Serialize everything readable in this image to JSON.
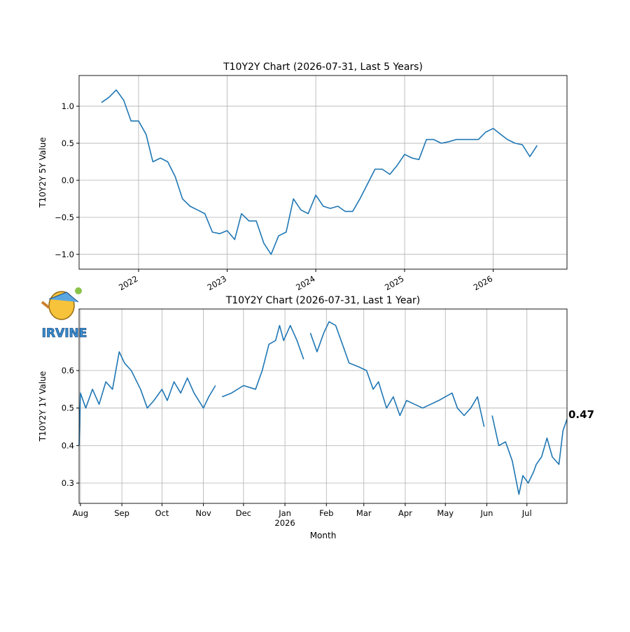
{
  "chart_data": [
    {
      "type": "line",
      "title": "T10Y2Y Chart (2026-07-31, Last 5 Years)",
      "y_label": "T10Y2Y 5Y Value",
      "color": "#1f77b4",
      "grid": true,
      "xlim": [
        "2021-05",
        "2026-11"
      ],
      "ylim": [
        -1.2,
        1.415
      ],
      "xticks": [
        {
          "value": "2022-01",
          "label": "2022"
        },
        {
          "value": "2023-01",
          "label": "2023"
        },
        {
          "value": "2024-01",
          "label": "2024"
        },
        {
          "value": "2025-01",
          "label": "2025"
        },
        {
          "value": "2026-01",
          "label": "2026"
        }
      ],
      "yticks": [
        {
          "value": -1,
          "label": "−1.0"
        },
        {
          "value": -0.5,
          "label": "−0.5"
        },
        {
          "value": 0,
          "label": "0.0"
        },
        {
          "value": 0.5,
          "label": "0.5"
        },
        {
          "value": 1,
          "label": "1.0"
        }
      ],
      "x": [
        "2021-08",
        "2021-09",
        "2021-10",
        "2021-11",
        "2021-12",
        "2022-01",
        "2022-02",
        "2022-03",
        "2022-04",
        "2022-05",
        "2022-06",
        "2022-07",
        "2022-08",
        "2022-09",
        "2022-10",
        "2022-11",
        "2022-12",
        "2023-01",
        "2023-02",
        "2023-03",
        "2023-04",
        "2023-05",
        "2023-06",
        "2023-07",
        "2023-08",
        "2023-09",
        "2023-10",
        "2023-11",
        "2023-12",
        "2024-01",
        "2024-02",
        "2024-03",
        "2024-04",
        "2024-05",
        "2024-06",
        "2024-07",
        "2024-08",
        "2024-09",
        "2024-10",
        "2024-11",
        "2024-12",
        "2025-01",
        "2025-02",
        "2025-03",
        "2025-04",
        "2025-05",
        "2025-06",
        "2025-07",
        "2025-08",
        "2025-09",
        "2025-10",
        "2025-11",
        "2025-12",
        "2026-01",
        "2026-02",
        "2026-03",
        "2026-04",
        "2026-05",
        "2026-06",
        "2026-07"
      ],
      "values": [
        1.05,
        1.12,
        1.22,
        1.08,
        0.8,
        0.8,
        0.62,
        0.25,
        0.3,
        0.25,
        0.05,
        -0.25,
        -0.35,
        -0.4,
        -0.45,
        -0.7,
        -0.72,
        -0.68,
        -0.8,
        -0.45,
        -0.55,
        -0.55,
        -0.85,
        -1.0,
        -0.75,
        -0.7,
        -0.25,
        -0.4,
        -0.45,
        -0.2,
        -0.35,
        -0.38,
        -0.35,
        -0.42,
        -0.42,
        -0.25,
        -0.05,
        0.15,
        0.15,
        0.08,
        0.2,
        0.35,
        0.3,
        0.28,
        0.55,
        0.55,
        0.5,
        0.52,
        0.55,
        0.55,
        0.55,
        0.55,
        0.65,
        0.7,
        0.62,
        0.55,
        0.5,
        0.48,
        0.32,
        0.47
      ]
    },
    {
      "type": "line",
      "title": "T10Y2Y Chart (2026-07-31, Last 1 Year)",
      "y_label": "T10Y2Y 1Y Value",
      "x_label": "Month",
      "x_year_label": "2026",
      "color": "#1f77b4",
      "grid": true,
      "logo_text": "IRVINE",
      "xlim": [
        "2025-07-31",
        "2026-07-31"
      ],
      "ylim": [
        0.246,
        0.764
      ],
      "xticks": [
        {
          "value": "2025-08-01",
          "label": "Aug"
        },
        {
          "value": "2025-09-01",
          "label": "Sep"
        },
        {
          "value": "2025-10-01",
          "label": "Oct"
        },
        {
          "value": "2025-11-01",
          "label": "Nov"
        },
        {
          "value": "2025-12-01",
          "label": "Dec"
        },
        {
          "value": "2026-01-01",
          "label": "Jan"
        },
        {
          "value": "2026-02-01",
          "label": "Feb"
        },
        {
          "value": "2026-03-01",
          "label": "Mar"
        },
        {
          "value": "2026-04-01",
          "label": "Apr"
        },
        {
          "value": "2026-05-01",
          "label": "May"
        },
        {
          "value": "2026-06-01",
          "label": "Jun"
        },
        {
          "value": "2026-07-01",
          "label": "Jul"
        }
      ],
      "yticks": [
        0.3,
        0.4,
        0.5,
        0.6
      ],
      "x": [
        "2025-07-31",
        "2025-08-01",
        "2025-08-05",
        "2025-08-10",
        "2025-08-15",
        "2025-08-20",
        "2025-08-25",
        "2025-08-30",
        "2025-09-03",
        "2025-09-08",
        "2025-09-15",
        "2025-09-20",
        "2025-09-25",
        "2025-10-01",
        "2025-10-05",
        "2025-10-10",
        "2025-10-15",
        "2025-10-20",
        "2025-10-25",
        "2025-11-01",
        "2025-11-05",
        "2025-11-10",
        "2025-11-12",
        "2025-11-15",
        "2025-11-22",
        "2025-12-01",
        "2025-12-10",
        "2025-12-15",
        "2025-12-20",
        "2025-12-25",
        "2025-12-28",
        "2025-12-31",
        "2026-01-05",
        "2026-01-10",
        "2026-01-15",
        "2026-01-17",
        "2026-01-20",
        "2026-01-25",
        "2026-01-30",
        "2026-02-03",
        "2026-02-08",
        "2026-02-14",
        "2026-02-18",
        "2026-02-25",
        "2026-03-03",
        "2026-03-08",
        "2026-03-12",
        "2026-03-18",
        "2026-03-23",
        "2026-03-28",
        "2026-04-02",
        "2026-04-08",
        "2026-04-14",
        "2026-04-20",
        "2026-04-26",
        "2026-05-01",
        "2026-05-06",
        "2026-05-10",
        "2026-05-15",
        "2026-05-20",
        "2026-05-25",
        "2026-05-30",
        "2026-06-02",
        "2026-06-05",
        "2026-06-10",
        "2026-06-15",
        "2026-06-20",
        "2026-06-25",
        "2026-06-28",
        "2026-07-02",
        "2026-07-06",
        "2026-07-08",
        "2026-07-12",
        "2026-07-16",
        "2026-07-20",
        "2026-07-25",
        "2026-07-28",
        "2026-07-31"
      ],
      "values": [
        0.4,
        0.54,
        0.5,
        0.55,
        0.51,
        0.57,
        0.55,
        0.65,
        0.62,
        0.6,
        0.55,
        0.5,
        0.52,
        0.55,
        0.52,
        0.57,
        0.54,
        0.58,
        0.54,
        0.5,
        0.53,
        0.56,
        null,
        0.53,
        0.54,
        0.56,
        0.55,
        0.6,
        0.67,
        0.68,
        0.72,
        0.68,
        0.72,
        0.68,
        0.63,
        null,
        0.7,
        0.65,
        0.7,
        0.73,
        0.72,
        0.66,
        0.62,
        0.61,
        0.6,
        0.55,
        0.57,
        0.5,
        0.53,
        0.48,
        0.52,
        0.51,
        0.5,
        0.51,
        0.52,
        0.53,
        0.54,
        0.5,
        0.48,
        0.5,
        0.53,
        0.45,
        null,
        0.48,
        0.4,
        0.41,
        0.36,
        0.27,
        0.32,
        0.3,
        0.33,
        0.35,
        0.37,
        0.42,
        0.37,
        0.35,
        0.44,
        0.47
      ]
    }
  ]
}
